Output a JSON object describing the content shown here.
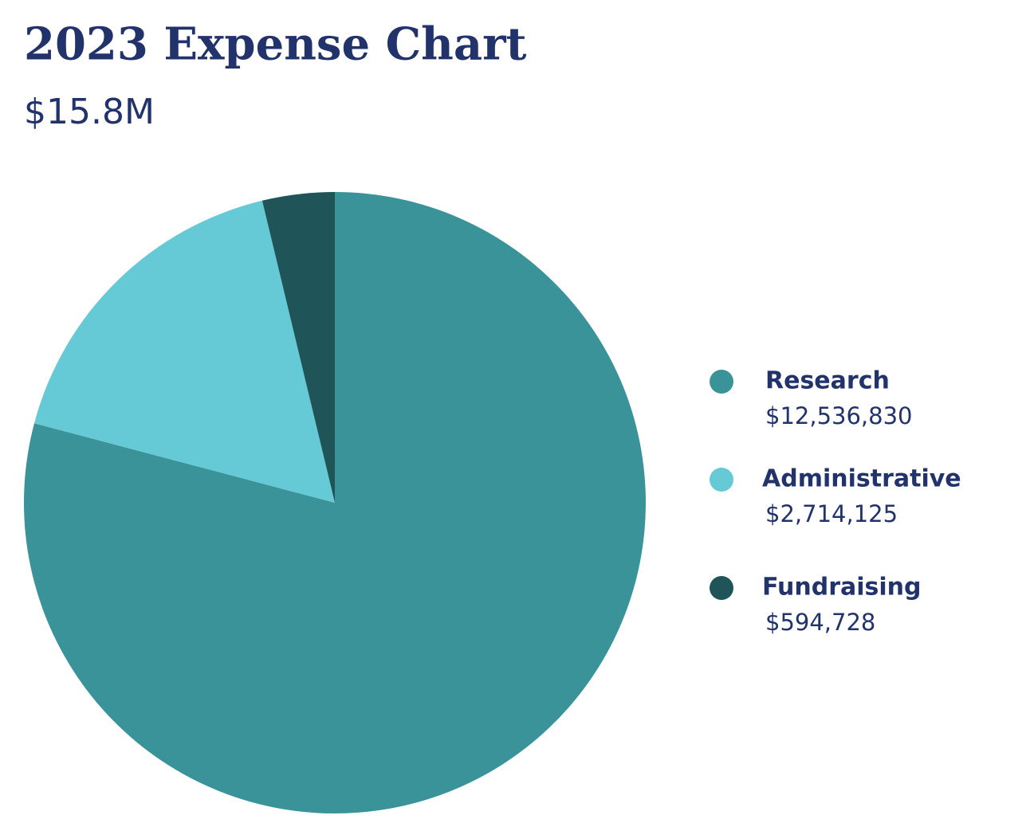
{
  "chart_data": {
    "type": "pie",
    "title": "2023 Expense Chart",
    "subtitle": "$15.8M",
    "categories": [
      "Research",
      "Administrative",
      "Fundraising"
    ],
    "values": [
      12536830,
      2714125,
      594728
    ],
    "value_labels": [
      "$12,536,830",
      "$2,714,125",
      "$594,728"
    ],
    "colors": [
      "#3a9399",
      "#66cad6",
      "#1f5459"
    ],
    "legend": "right"
  }
}
